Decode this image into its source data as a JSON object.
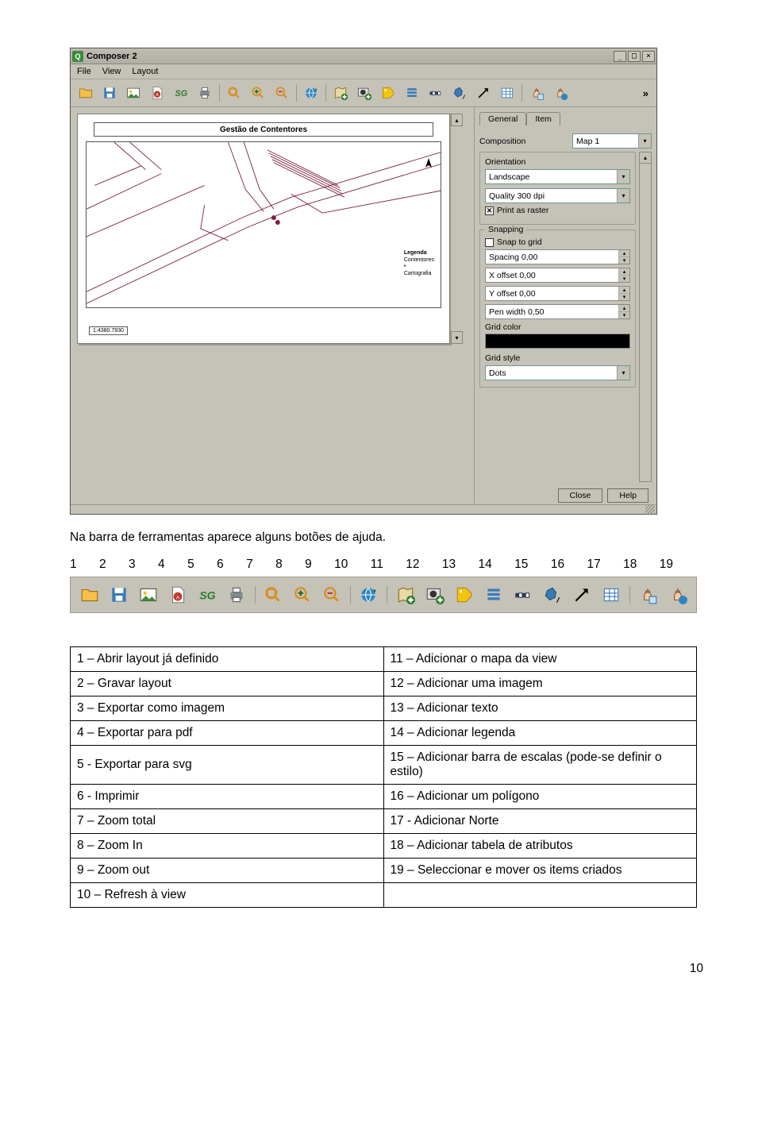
{
  "window": {
    "title": "Composer 2",
    "menus": [
      "File",
      "View",
      "Layout"
    ],
    "win_buttons": [
      "_",
      "□",
      "×"
    ],
    "overflow": "»"
  },
  "paper": {
    "title": "Gestão de Contentores",
    "legend_label": "Legenda",
    "legend_items": [
      "Contentores",
      "•",
      "Cartografia"
    ],
    "scale": "1:4380.7930",
    "north": "N"
  },
  "panel": {
    "tabs": [
      "General",
      "Item"
    ],
    "composition_label": "Composition",
    "composition_value": "Map 1",
    "orientation_label": "Orientation",
    "orientation_value": "Landscape",
    "quality_value": "Quality 300 dpi",
    "print_raster": "Print as raster",
    "snapping_label": "Snapping",
    "snap_to_grid": "Snap to grid",
    "spacing": "Spacing 0,00",
    "xoffset": "X offset 0,00",
    "yoffset": "Y offset 0,00",
    "penwidth": "Pen width 0,50",
    "grid_color_label": "Grid color",
    "grid_color": "#000000",
    "grid_style_label": "Grid style",
    "grid_style_value": "Dots",
    "close": "Close",
    "help": "Help"
  },
  "caption": "Na barra de ferramentas aparece alguns botões de ajuda.",
  "numbers": [
    "1",
    "2",
    "3",
    "4",
    "5",
    "6",
    "7",
    "8",
    "9",
    "10",
    "11",
    "12",
    "13",
    "14",
    "15",
    "16",
    "17",
    "18",
    "19"
  ],
  "table": {
    "rows": [
      [
        "1 – Abrir layout já definido",
        "11 – Adicionar o mapa da view"
      ],
      [
        "2 – Gravar layout",
        "12 – Adicionar uma imagem"
      ],
      [
        "3 – Exportar como imagem",
        "13 – Adicionar texto"
      ],
      [
        "4 – Exportar para pdf",
        "14 – Adicionar legenda"
      ],
      [
        "5 -  Exportar para svg",
        "15 – Adicionar barra de escalas (pode-se definir o estilo)"
      ],
      [
        "6 - Imprimir",
        "16 – Adicionar um polígono"
      ],
      [
        "7 – Zoom total",
        "17 -  Adicionar Norte"
      ],
      [
        "8 – Zoom In",
        "18 – Adicionar tabela de atributos"
      ],
      [
        "9 – Zoom out",
        "19 – Seleccionar e mover os items criados"
      ],
      [
        "10 – Refresh à view",
        ""
      ]
    ]
  },
  "pagenum": "10",
  "icons": {
    "colors": {
      "folder": "#f6c048",
      "save1": "#3a7ab8",
      "save2": "#c0392b",
      "pdf": "#c0392b",
      "svg": "#2d7a2d",
      "print": "#7f8c8d",
      "mag": "#d98c1a",
      "globe": "#2e86c1",
      "addmap": "#2d7a2d",
      "photo": "#6d6b62",
      "tag": "#f1c40f",
      "legend": "#3a7ab8",
      "scalebar": "#2c3e50",
      "shape": "#3a7ab8",
      "arrow": "#000000",
      "table": "#3a7ab8",
      "hand": "#f5cba7",
      "handblue": "#3a7ab8"
    }
  }
}
